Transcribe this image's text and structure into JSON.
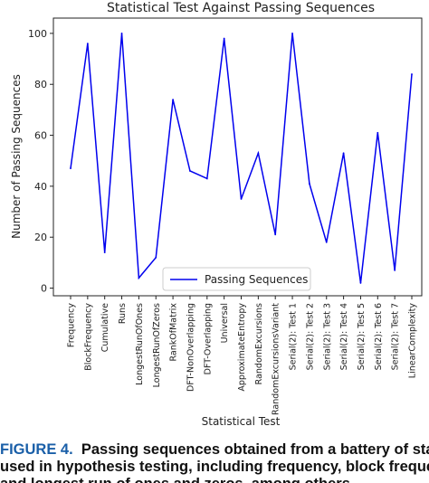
{
  "chart_data": {
    "type": "line",
    "title": "Statistical Test Against Passing Sequences",
    "xlabel": "Statistical Test",
    "ylabel": "Number of Passing Sequences",
    "ylim": [
      -3,
      106
    ],
    "yticks": [
      0,
      20,
      40,
      60,
      80,
      100
    ],
    "grid": false,
    "legend_position": "lower-center",
    "categories": [
      "Frequency",
      "BlockFrequency",
      "Cumulative",
      "Runs",
      "LongestRunOfOnes",
      "LongestRunOfZeros",
      "RankOfMatrix",
      "DFT-NonOverlapping",
      "DFT-Overlapping",
      "Universal",
      "ApproximateEntropy",
      "RandomExcursions",
      "RandomExcursionsVariant",
      "Serial(2): Test 1",
      "Serial(2): Test 2",
      "Serial(2): Test 3",
      "Serial(2): Test 4",
      "Serial(2): Test 5",
      "Serial(2): Test 6",
      "Serial(2): Test 7",
      "LinearComplexity"
    ],
    "series": [
      {
        "name": "Passing Sequences",
        "color": "#0000ee",
        "values": [
          47,
          96,
          14,
          100,
          4,
          12,
          74,
          46,
          43,
          98,
          35,
          53,
          21,
          100,
          41,
          18,
          53,
          2,
          61,
          7,
          84
        ]
      }
    ]
  },
  "caption": {
    "label": "FIGURE 4.",
    "line1": "Passing sequences obtained from a battery of statistical tests",
    "line2": "used in hypothesis testing, including frequency, block frequency, runs,",
    "line3": "and longest run of ones and zeros, among others."
  }
}
